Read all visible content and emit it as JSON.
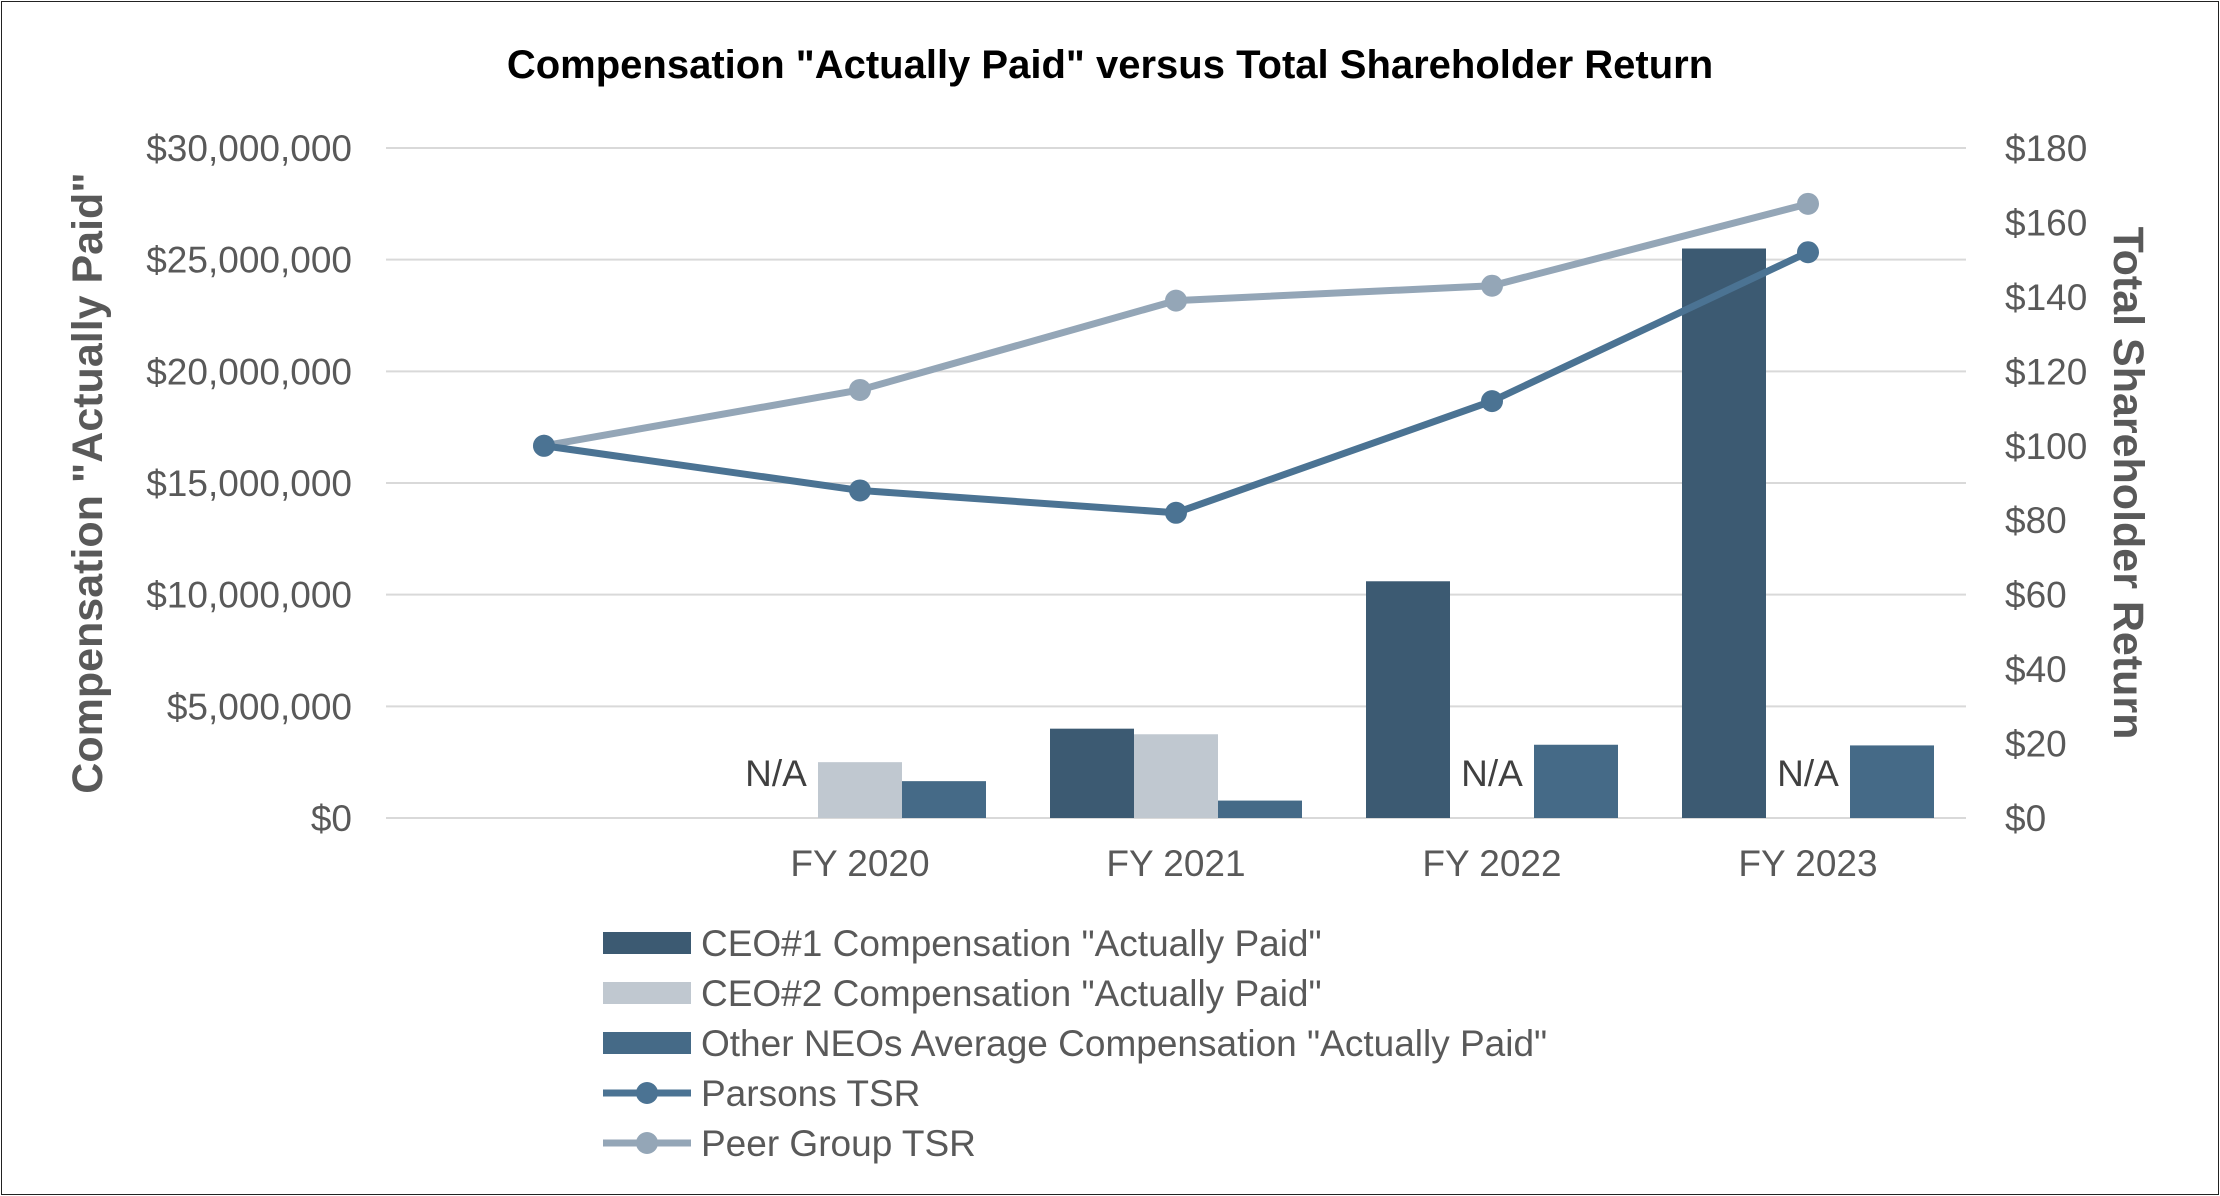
{
  "chart_data": {
    "type": "bar",
    "title": "Compensation \"Actually Paid\" versus Total Shareholder Return",
    "ylabel": "Compensation \"Actually Paid\"",
    "y2label": "Total Shareholder Return",
    "ylim": [
      0,
      30000000
    ],
    "y2lim": [
      0,
      180
    ],
    "yticks": [
      "$0",
      "$5,000,000",
      "$10,000,000",
      "$15,000,000",
      "$20,000,000",
      "$25,000,000",
      "$30,000,000"
    ],
    "y2ticks": [
      "$0",
      "$20",
      "$40",
      "$60",
      "$80",
      "$100",
      "$120",
      "$140",
      "$160",
      "$180"
    ],
    "categories": [
      "",
      "FY 2020",
      "FY 2021",
      "FY 2022",
      "FY 2023"
    ],
    "na_label": "N/A",
    "bar_series": [
      {
        "name": "CEO#1 Compensation \"Actually Paid\"",
        "color": "#3c5a72",
        "values": [
          null,
          null,
          4000000,
          10600000,
          25500000
        ],
        "na": [
          false,
          true,
          false,
          false,
          false
        ]
      },
      {
        "name": "CEO#2 Compensation \"Actually Paid\"",
        "color": "#c0c8d0",
        "values": [
          null,
          2500000,
          3750000,
          null,
          null
        ],
        "na": [
          false,
          false,
          false,
          true,
          true
        ]
      },
      {
        "name": "Other NEOs Average Compensation \"Actually Paid\"",
        "color": "#456a87",
        "values": [
          null,
          1650000,
          780000,
          3280000,
          3250000
        ],
        "na": [
          false,
          false,
          false,
          false,
          false
        ]
      }
    ],
    "line_series": [
      {
        "name": "Parsons TSR",
        "color": "#4b7393",
        "values": [
          100,
          88,
          82,
          112,
          152
        ]
      },
      {
        "name": "Peer Group TSR",
        "color": "#94a6b7",
        "values": [
          100,
          115,
          139,
          143,
          165
        ]
      }
    ],
    "grid": true,
    "legend_position": "bottom"
  }
}
